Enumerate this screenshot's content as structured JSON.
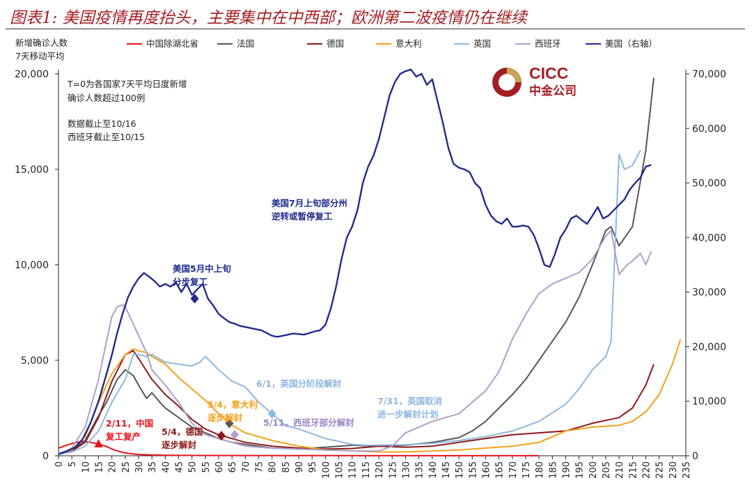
{
  "header": {
    "title": "图表1: 美国疫情再度抬头，主要集中在中西部；欧洲第二波疫情仍在继续"
  },
  "logo": {
    "name_en": "CICC",
    "name_cn": "中金公司"
  },
  "chart_data": {
    "type": "line",
    "ylabel": [
      "新增确诊人数",
      "7天移动平均"
    ],
    "x_ticks": [
      0,
      5,
      10,
      15,
      20,
      25,
      30,
      35,
      40,
      45,
      50,
      55,
      60,
      65,
      70,
      75,
      80,
      85,
      90,
      95,
      100,
      105,
      110,
      115,
      120,
      125,
      130,
      135,
      140,
      145,
      150,
      155,
      160,
      165,
      170,
      175,
      180,
      185,
      190,
      195,
      200,
      205,
      210,
      215,
      220,
      225,
      230,
      235
    ],
    "xlim": [
      0,
      235
    ],
    "ylim": [
      0,
      20000
    ],
    "y_ticks": [
      0,
      5000,
      10000,
      15000,
      20000
    ],
    "y_tick_labels": [
      "0",
      "5,000",
      "10,000",
      "15,000",
      "20,000"
    ],
    "y2lim": [
      0,
      70000
    ],
    "y2_ticks": [
      0,
      10000,
      20000,
      30000,
      40000,
      50000,
      60000,
      70000
    ],
    "y2_tick_labels": [
      "0",
      "10,000",
      "20,000",
      "30,000",
      "40,000",
      "50,000",
      "60,000",
      "70,000"
    ],
    "legend_position": "top",
    "notes": [
      "T=0为各国家7天平均日度新增",
      "确诊人数超过100例",
      "数据截止至10/16",
      "西班牙截止至10/15"
    ],
    "series": [
      {
        "name": "中国除湖北省",
        "color": "#e8141b",
        "axis": "left",
        "x": [
          0,
          3,
          6,
          9,
          12,
          15,
          18,
          21,
          24,
          27,
          30,
          35,
          40,
          50,
          60,
          80,
          100,
          120,
          150,
          180
        ],
        "y": [
          400,
          550,
          680,
          760,
          700,
          620,
          480,
          300,
          180,
          110,
          70,
          40,
          30,
          20,
          15,
          10,
          8,
          5,
          5,
          5
        ]
      },
      {
        "name": "法国",
        "color": "#555555",
        "axis": "left",
        "x": [
          0,
          5,
          10,
          15,
          18,
          20,
          22,
          25,
          28,
          30,
          33,
          35,
          38,
          40,
          45,
          50,
          55,
          60,
          65,
          70,
          75,
          80,
          90,
          100,
          110,
          120,
          130,
          140,
          150,
          155,
          160,
          165,
          170,
          175,
          180,
          185,
          190,
          195,
          200,
          205,
          207,
          210,
          215,
          220,
          223
        ],
        "y": [
          100,
          300,
          800,
          2100,
          2800,
          3400,
          4000,
          4500,
          4200,
          3700,
          3000,
          3300,
          2800,
          2500,
          2000,
          1500,
          1200,
          900,
          700,
          600,
          500,
          400,
          350,
          450,
          550,
          500,
          550,
          700,
          950,
          1300,
          1800,
          2500,
          3200,
          4000,
          5000,
          6000,
          7000,
          8300,
          10000,
          11800,
          12000,
          11000,
          12000,
          16000,
          19800
        ]
      },
      {
        "name": "德国",
        "color": "#8b1a1a",
        "axis": "left",
        "x": [
          0,
          5,
          10,
          15,
          20,
          25,
          28,
          30,
          35,
          40,
          45,
          50,
          55,
          60,
          65,
          70,
          80,
          90,
          100,
          110,
          120,
          130,
          140,
          150,
          160,
          170,
          180,
          190,
          200,
          210,
          215,
          220,
          223
        ],
        "y": [
          100,
          250,
          700,
          2000,
          3900,
          5300,
          5500,
          5100,
          4000,
          3200,
          2600,
          1900,
          1400,
          1100,
          900,
          700,
          500,
          400,
          350,
          380,
          500,
          450,
          500,
          700,
          900,
          1100,
          1200,
          1300,
          1700,
          2000,
          2500,
          3700,
          4800
        ]
      },
      {
        "name": "意大利",
        "color": "#f5a01a",
        "axis": "left",
        "x": [
          0,
          5,
          10,
          15,
          20,
          25,
          28,
          30,
          33,
          35,
          40,
          45,
          50,
          55,
          60,
          65,
          70,
          80,
          90,
          100,
          110,
          120,
          130,
          140,
          150,
          160,
          170,
          180,
          190,
          195,
          200,
          210,
          215,
          220,
          225,
          230,
          233
        ],
        "y": [
          100,
          300,
          1000,
          2800,
          4300,
          5300,
          5600,
          5500,
          5400,
          5200,
          4800,
          4100,
          3500,
          2900,
          2200,
          1600,
          1200,
          800,
          500,
          300,
          250,
          200,
          200,
          250,
          300,
          400,
          500,
          700,
          1300,
          1400,
          1500,
          1600,
          1800,
          2300,
          3200,
          4800,
          6100
        ]
      },
      {
        "name": "英国",
        "color": "#8db8e0",
        "axis": "left",
        "x": [
          0,
          5,
          10,
          15,
          20,
          25,
          28,
          30,
          33,
          35,
          40,
          45,
          50,
          53,
          55,
          60,
          65,
          70,
          75,
          80,
          85,
          90,
          100,
          110,
          115,
          120,
          125,
          130,
          140,
          150,
          160,
          170,
          180,
          190,
          195,
          200,
          205,
          207,
          210,
          212,
          215,
          218
        ],
        "y": [
          80,
          200,
          500,
          1300,
          2800,
          4000,
          5300,
          5300,
          5200,
          5300,
          4900,
          4800,
          4700,
          4900,
          5200,
          4500,
          3900,
          3600,
          2800,
          2200,
          1600,
          1400,
          900,
          600,
          550,
          550,
          570,
          580,
          650,
          800,
          1000,
          1300,
          1800,
          2700,
          3500,
          4500,
          5200,
          6000,
          15800,
          15000,
          15200,
          16000
        ]
      },
      {
        "name": "西班牙",
        "color": "#b09ecb",
        "axis": "left",
        "x": [
          0,
          5,
          10,
          15,
          18,
          20,
          22,
          24,
          25,
          27,
          30,
          33,
          35,
          40,
          45,
          50,
          55,
          60,
          65,
          70,
          80,
          90,
          100,
          110,
          120,
          125,
          130,
          135,
          140,
          150,
          160,
          165,
          170,
          175,
          180,
          185,
          190,
          195,
          200,
          205,
          207,
          210,
          213,
          215,
          218,
          220,
          222
        ],
        "y": [
          100,
          400,
          1500,
          4000,
          6000,
          7300,
          7800,
          7900,
          7800,
          7200,
          6300,
          5400,
          4500,
          3700,
          2800,
          1700,
          1100,
          900,
          700,
          500,
          400,
          350,
          300,
          250,
          250,
          500,
          1200,
          1500,
          1800,
          2200,
          3400,
          4400,
          6100,
          7400,
          8500,
          9000,
          9300,
          9600,
          10300,
          11500,
          11800,
          9500,
          10000,
          10200,
          10600,
          10000,
          10700
        ]
      },
      {
        "name": "美国（右轴）",
        "color": "#1f2b8c",
        "axis": "right",
        "x": [
          0,
          3,
          6,
          9,
          12,
          15,
          18,
          20,
          22,
          24,
          26,
          28,
          30,
          32,
          34,
          36,
          38,
          40,
          42,
          44,
          46,
          48,
          50,
          52,
          54,
          56,
          58,
          60,
          62,
          64,
          66,
          68,
          70,
          72,
          74,
          76,
          78,
          80,
          82,
          84,
          86,
          88,
          90,
          92,
          94,
          96,
          98,
          100,
          102,
          104,
          106,
          108,
          110,
          112,
          114,
          116,
          118,
          120,
          122,
          124,
          126,
          128,
          130,
          132,
          134,
          136,
          138,
          140,
          142,
          144,
          146,
          148,
          150,
          152,
          154,
          156,
          158,
          160,
          162,
          164,
          166,
          168,
          170,
          172,
          174,
          176,
          178,
          180,
          182,
          184,
          186,
          188,
          190,
          192,
          194,
          196,
          198,
          200,
          202,
          204,
          206,
          208,
          210,
          212,
          214,
          216,
          218,
          220,
          222
        ],
        "y": [
          300,
          800,
          1500,
          3000,
          6000,
          10000,
          15000,
          18500,
          22500,
          26000,
          29000,
          31000,
          32500,
          33500,
          32800,
          32000,
          31000,
          31500,
          31000,
          31800,
          30000,
          31500,
          29500,
          30500,
          31500,
          28800,
          27500,
          26000,
          25200,
          24500,
          24200,
          23800,
          23600,
          23400,
          23200,
          23000,
          22500,
          22000,
          21800,
          22000,
          22200,
          22400,
          22300,
          22200,
          22500,
          22800,
          23000,
          24000,
          27000,
          31000,
          36000,
          40000,
          42000,
          45000,
          50000,
          53000,
          55000,
          58000,
          62000,
          66000,
          68500,
          70000,
          70500,
          70800,
          69500,
          70000,
          68000,
          69000,
          65000,
          61000,
          56500,
          53500,
          52800,
          52500,
          52000,
          50000,
          49000,
          46000,
          44000,
          43000,
          42500,
          43500,
          42000,
          42000,
          42200,
          42000,
          40500,
          38000,
          35000,
          34600,
          37000,
          40000,
          41500,
          43500,
          44000,
          43200,
          42500,
          44000,
          45600,
          43500,
          44000,
          45000,
          46000,
          47000,
          48800,
          50000,
          51000,
          53000,
          53300
        ]
      }
    ],
    "annotations": [
      {
        "text": [
          "2/11，中国",
          "复工复产"
        ],
        "color": "#e8141b"
      },
      {
        "text": [
          "5/4，德国",
          "逐步解封"
        ],
        "color": "#8b1a1a"
      },
      {
        "text": [
          "5/4，意大利",
          "逐步解封"
        ],
        "color": "#f5a01a"
      },
      {
        "text": [
          "5/11，西班牙部分解封"
        ],
        "color": "#9b86c4"
      },
      {
        "text": [
          "美国5月中上旬",
          "分步复工"
        ],
        "color": "#1f2b8c"
      },
      {
        "text": [
          "6/1，英国分阶段解封"
        ],
        "color": "#8db8e0"
      },
      {
        "text": [
          "美国7月上旬部分州",
          "逆转或暂停复工"
        ],
        "color": "#1f2b8c"
      },
      {
        "text": [
          "7/31，英国取消",
          "进一步解封计划"
        ],
        "color": "#8db8e0"
      }
    ]
  }
}
